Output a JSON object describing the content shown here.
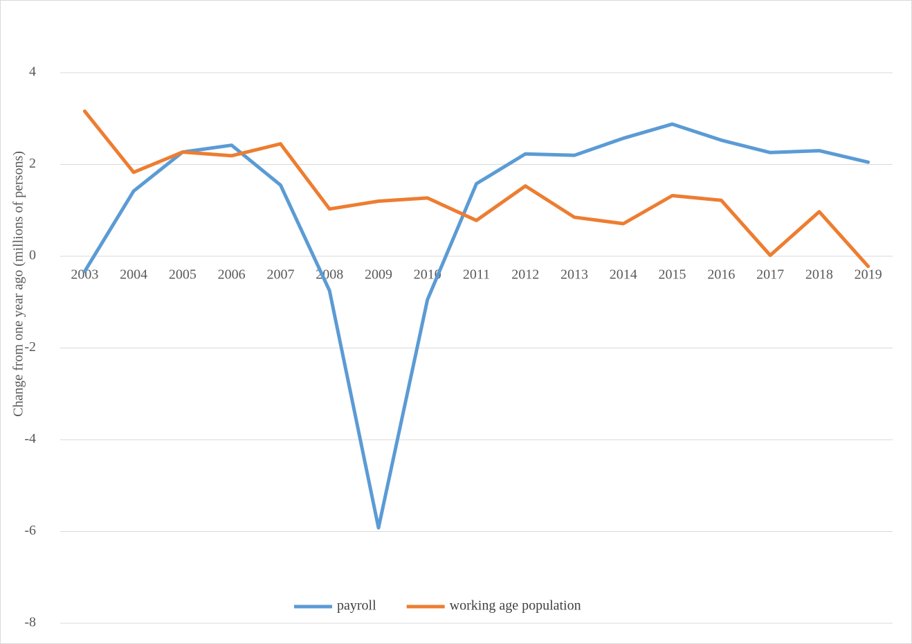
{
  "chart_data": {
    "type": "line",
    "y_label": "Change from one year ago (millions of persons)",
    "categories": [
      "2003",
      "2004",
      "2005",
      "2006",
      "2007",
      "2008",
      "2009",
      "2010",
      "2011",
      "2012",
      "2013",
      "2014",
      "2015",
      "2016",
      "2017",
      "2018",
      "2019"
    ],
    "series": [
      {
        "name": "payroll",
        "color": "#5b9bd5",
        "values": [
          -0.33,
          1.42,
          2.27,
          2.42,
          1.55,
          -0.75,
          -5.92,
          -0.95,
          1.58,
          2.23,
          2.2,
          2.57,
          2.88,
          2.53,
          2.26,
          2.3,
          2.05
        ]
      },
      {
        "name": "working age population",
        "color": "#ed7d31",
        "values": [
          3.16,
          1.83,
          2.27,
          2.19,
          2.45,
          1.03,
          1.2,
          1.27,
          0.78,
          1.53,
          0.85,
          0.71,
          1.32,
          1.22,
          0.02,
          0.97,
          -0.22
        ]
      }
    ],
    "ylim": [
      -8,
      4
    ],
    "yticks": [
      -8,
      -6,
      -4,
      -2,
      0,
      2,
      4
    ],
    "grid": true,
    "legend": "bottom"
  }
}
